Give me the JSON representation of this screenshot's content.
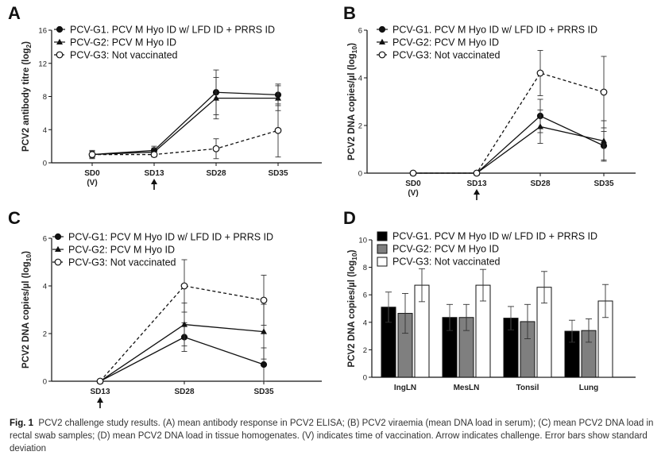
{
  "caption": {
    "label": "Fig. 1",
    "text": "PCV2 challenge study results. (A) mean antibody response in PCV2 ELISA; (B) PCV2 viraemia (mean DNA load in serum); (C) mean PCV2 DNA load in rectal swab samples; (D) mean PCV2 DNA load in tissue homogenates. (V) indicates time of vaccination. Arrow indicates challenge. Error bars show standard deviation"
  },
  "chart_data": [
    {
      "panel": "A",
      "type": "line",
      "ylabel": "PCV2 antibody titre (log2)",
      "categories": [
        "SD0",
        "SD13",
        "SD28",
        "SD35"
      ],
      "category_sublabels": [
        "(V)",
        "",
        "",
        ""
      ],
      "ylim": [
        0,
        16
      ],
      "yticks": [
        0,
        4,
        8,
        12,
        16
      ],
      "challenge_category": "SD13",
      "legend_position": "top-left",
      "series": [
        {
          "name": "PCV-G1. PCV M Hyo ID w/ LFD ID + PRRS ID",
          "marker": "filled-circle",
          "line": "solid",
          "values": [
            1.0,
            1.5,
            8.5,
            8.2
          ],
          "errors": [
            0.5,
            0.5,
            2.7,
            1.3
          ]
        },
        {
          "name": "PCV-G2: PCV M Hyo ID",
          "marker": "triangle",
          "line": "solid",
          "values": [
            1.0,
            1.3,
            7.8,
            7.8
          ],
          "errors": [
            0.4,
            0.5,
            2.5,
            1.5
          ]
        },
        {
          "name": "PCV-G3: Not vaccinated",
          "marker": "open-circle",
          "line": "dashed",
          "values": [
            1.0,
            1.0,
            1.7,
            3.9
          ],
          "errors": [
            0.4,
            0.3,
            1.2,
            3.2
          ]
        }
      ]
    },
    {
      "panel": "B",
      "type": "line",
      "ylabel": "PCV2 DNA copies/µl (log10)",
      "categories": [
        "SD0",
        "SD13",
        "SD28",
        "SD35"
      ],
      "category_sublabels": [
        "(V)",
        "",
        "",
        ""
      ],
      "ylim": [
        0,
        6
      ],
      "yticks": [
        0,
        2,
        4,
        6
      ],
      "challenge_category": "SD13",
      "legend_position": "top",
      "series": [
        {
          "name": "PCV-G1. PCV M Hyo ID w/ LFD ID + PRRS ID",
          "marker": "filled-circle",
          "line": "solid",
          "values": [
            0,
            0,
            2.4,
            1.15
          ],
          "errors": [
            0,
            0,
            0.7,
            0.6
          ]
        },
        {
          "name": "PCV-G2: PCV M Hyo ID",
          "marker": "triangle",
          "line": "solid",
          "values": [
            0,
            0,
            1.95,
            1.35
          ],
          "errors": [
            0,
            0,
            0.7,
            0.85
          ]
        },
        {
          "name": "PCV-G3: Not vaccinated",
          "marker": "open-circle",
          "line": "dashed",
          "values": [
            0,
            0,
            4.2,
            3.4
          ],
          "errors": [
            0,
            0,
            0.95,
            1.5
          ]
        }
      ]
    },
    {
      "panel": "C",
      "type": "line",
      "ylabel": "PCV2 DNA copies/µl (log10)",
      "categories": [
        "SD13",
        "SD28",
        "SD35"
      ],
      "ylim": [
        0,
        6
      ],
      "yticks": [
        0,
        2,
        4,
        6
      ],
      "challenge_category": "SD13",
      "legend_position": "top",
      "series": [
        {
          "name": "PCV-G1: PCV M Hyo ID w/ LFD ID + PRRS ID",
          "marker": "filled-circle",
          "line": "solid",
          "values": [
            0,
            1.85,
            0.7
          ],
          "errors": [
            0,
            0.6,
            0.7
          ]
        },
        {
          "name": "PCV-G2: PCV M Hyo ID",
          "marker": "triangle",
          "line": "solid",
          "values": [
            0,
            2.38,
            2.08
          ],
          "errors": [
            0,
            0.9,
            1.15
          ]
        },
        {
          "name": "PCV-G3: Not vaccinated",
          "marker": "open-circle",
          "line": "dashed",
          "values": [
            0,
            4.0,
            3.4
          ],
          "errors": [
            0,
            1.1,
            1.05
          ]
        }
      ]
    },
    {
      "panel": "D",
      "type": "bar",
      "ylabel": "PCV2 DNA copies/µl (log10)",
      "categories": [
        "IngLN",
        "MesLN",
        "Tonsil",
        "Lung"
      ],
      "ylim": [
        0,
        10
      ],
      "yticks": [
        0,
        2,
        4,
        6,
        8,
        10
      ],
      "legend_position": "top",
      "series": [
        {
          "name": "PCV-G1. PCV M Hyo ID w/ LFD ID + PRRS ID",
          "color": "#000000",
          "values": [
            5.1,
            4.35,
            4.3,
            3.35
          ],
          "errors": [
            1.1,
            0.95,
            0.85,
            0.8
          ]
        },
        {
          "name": "PCV-G2: PCV M Hyo ID",
          "color": "#7f7f7f",
          "values": [
            4.65,
            4.35,
            4.05,
            3.4
          ],
          "errors": [
            1.45,
            0.95,
            1.25,
            0.85
          ]
        },
        {
          "name": "PCV-G3: Not vaccinated",
          "color": "#ffffff",
          "values": [
            6.7,
            6.7,
            6.55,
            5.55
          ],
          "errors": [
            1.2,
            1.15,
            1.15,
            1.2
          ]
        }
      ]
    }
  ]
}
